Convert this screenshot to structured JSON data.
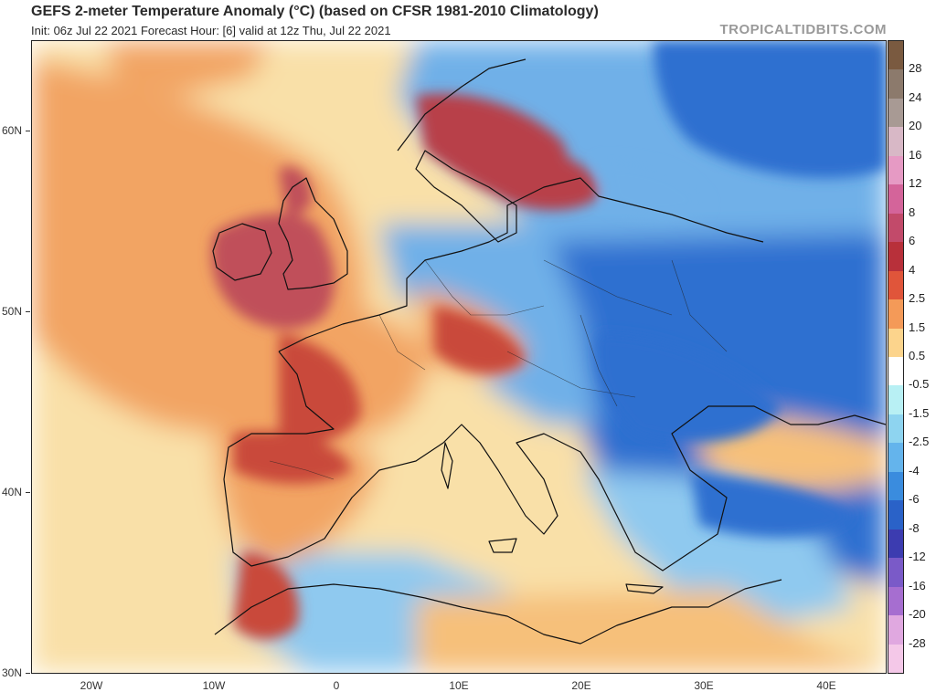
{
  "header": {
    "title": "GEFS 2-meter Temperature Anomaly (°C) (based on CFSR 1981-2010 Climatology)",
    "subtitle": "Init: 06z Jul 22 2021   Forecast Hour: [6]   valid at 12z Thu, Jul 22 2021",
    "brand": "TROPICALTIDBITS.COM"
  },
  "map": {
    "lat_labels": [
      "60N",
      "50N",
      "40N",
      "30N"
    ],
    "lon_labels": [
      "20W",
      "10W",
      "0",
      "10E",
      "20E",
      "30E",
      "40E"
    ],
    "regions": [
      {
        "name": "ocean-base",
        "color": "#f9e0a8"
      },
      {
        "name": "north-atlantic-warm",
        "color": "#f2a464"
      },
      {
        "name": "uk-ireland-anomaly",
        "color": "#c0505a"
      },
      {
        "name": "scandinavia-anomaly",
        "color": "#b8404a"
      },
      {
        "name": "france-iberia-anomaly",
        "color": "#c9483a"
      },
      {
        "name": "central-europe-cool",
        "color": "#6fb0e8"
      },
      {
        "name": "eastern-europe-cold",
        "color": "#2f6fd0"
      },
      {
        "name": "mediterranean-cool",
        "color": "#8fc9ef"
      },
      {
        "name": "north-africa-mix",
        "color": "#f6c07a"
      }
    ]
  },
  "colorbar": {
    "labels": [
      "28",
      "24",
      "20",
      "16",
      "12",
      "8",
      "6",
      "4",
      "2.5",
      "1.5",
      "0.5",
      "-0.5",
      "-1.5",
      "-2.5",
      "-4",
      "-6",
      "-8",
      "-12",
      "-16",
      "-20",
      "-28"
    ],
    "colors": [
      "#7a5a40",
      "#8c7a6c",
      "#a89a94",
      "#d8b8c6",
      "#e69ac4",
      "#d4649a",
      "#c24a6a",
      "#b8303a",
      "#e0553a",
      "#f49a58",
      "#fcd48c",
      "#ffffff",
      "#b8f0f4",
      "#8ed4f0",
      "#64b4ec",
      "#3a8cde",
      "#2a62c8",
      "#3c3cb0",
      "#7a5ac8",
      "#a66ed0",
      "#e0a8e0",
      "#f4c8e8"
    ]
  }
}
